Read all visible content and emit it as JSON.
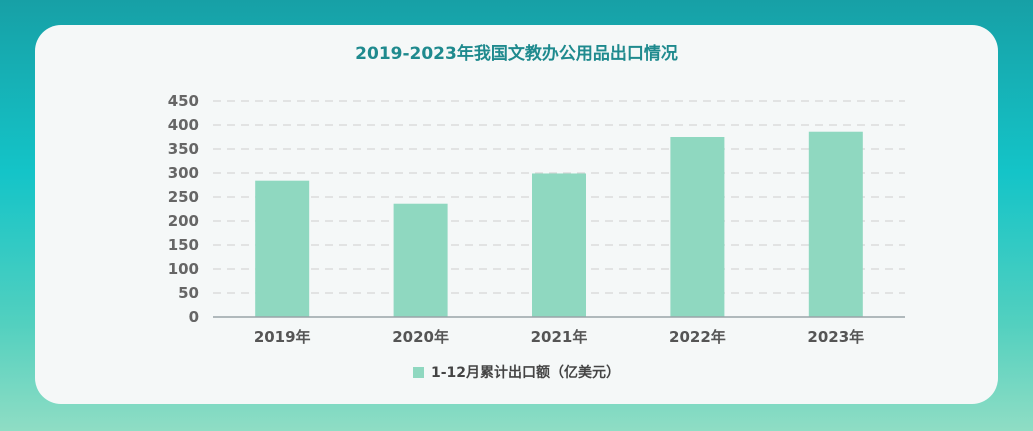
{
  "chart_data": {
    "type": "bar",
    "title": "2019-2023年我国文教办公用品出口情况",
    "categories": [
      "2019年",
      "2020年",
      "2021年",
      "2022年",
      "2023年"
    ],
    "series": [
      {
        "name": "1-12月累计出口额（亿美元）",
        "values": [
          284,
          236,
          299,
          375,
          386
        ],
        "color": "#8fd8c0"
      }
    ],
    "ylim": [
      0,
      450
    ],
    "yticks": [
      0,
      50,
      100,
      150,
      200,
      250,
      300,
      350,
      400,
      450
    ],
    "grid": true,
    "legend_position": "bottom"
  }
}
